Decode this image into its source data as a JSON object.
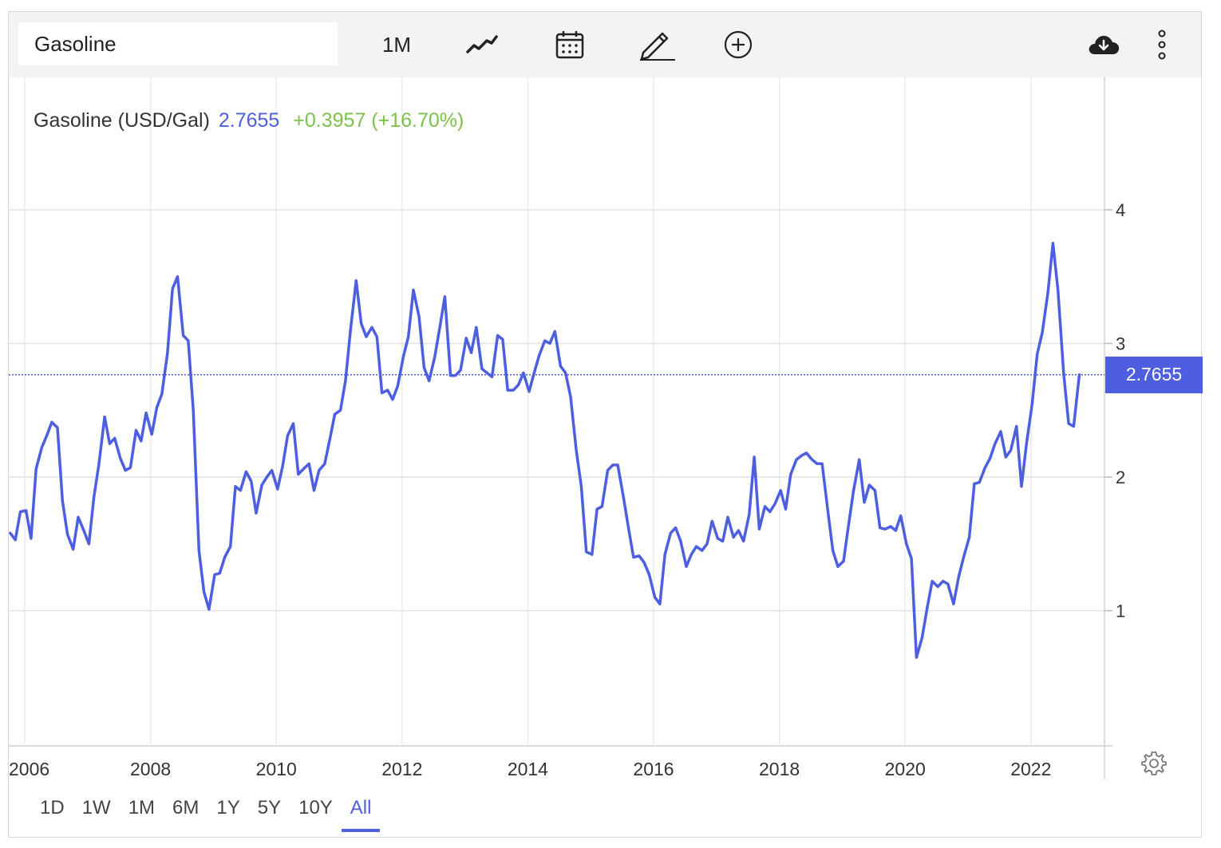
{
  "toolbar": {
    "search_value": "Gasoline",
    "interval_label": "1M",
    "icons": [
      "line-chart-icon",
      "calendar-icon",
      "pencil-icon",
      "add-circle-icon",
      "cloud-download-icon",
      "more-vertical-icon"
    ]
  },
  "legend": {
    "name": "Gasoline (USD/Gal)",
    "value": "2.7655",
    "change": "+0.3957 (+16.70%)",
    "value_color": "#4d5fe0",
    "change_color": "#7dc04b"
  },
  "price_badge": "2.7655",
  "range_tabs": [
    {
      "label": "1D",
      "active": false
    },
    {
      "label": "1W",
      "active": false
    },
    {
      "label": "1M",
      "active": false
    },
    {
      "label": "6M",
      "active": false
    },
    {
      "label": "1Y",
      "active": false
    },
    {
      "label": "5Y",
      "active": false
    },
    {
      "label": "10Y",
      "active": false
    },
    {
      "label": "All",
      "active": true
    }
  ],
  "chart_data": {
    "type": "line",
    "title": "",
    "xlabel": "",
    "ylabel": "",
    "x_ticks": [
      "2006",
      "2008",
      "2010",
      "2012",
      "2014",
      "2016",
      "2018",
      "2020",
      "2022"
    ],
    "y_ticks": [
      "1",
      "2",
      "3",
      "4"
    ],
    "xlim": [
      2005.77,
      2023.25
    ],
    "ylim": [
      0,
      5
    ],
    "grid": true,
    "current_value": 2.7655,
    "line_color": "#4d5fe0",
    "series": [
      {
        "points": [
          [
            2005.77,
            1.58
          ],
          [
            2005.85,
            1.53
          ],
          [
            2005.93,
            1.74
          ],
          [
            2006.02,
            1.75
          ],
          [
            2006.1,
            1.54
          ],
          [
            2006.18,
            2.06
          ],
          [
            2006.27,
            2.22
          ],
          [
            2006.35,
            2.31
          ],
          [
            2006.43,
            2.41
          ],
          [
            2006.52,
            2.37
          ],
          [
            2006.6,
            1.82
          ],
          [
            2006.68,
            1.57
          ],
          [
            2006.77,
            1.46
          ],
          [
            2006.85,
            1.7
          ],
          [
            2006.93,
            1.61
          ],
          [
            2007.02,
            1.5
          ],
          [
            2007.1,
            1.85
          ],
          [
            2007.18,
            2.1
          ],
          [
            2007.27,
            2.45
          ],
          [
            2007.35,
            2.25
          ],
          [
            2007.43,
            2.29
          ],
          [
            2007.52,
            2.14
          ],
          [
            2007.6,
            2.05
          ],
          [
            2007.68,
            2.07
          ],
          [
            2007.77,
            2.35
          ],
          [
            2007.85,
            2.27
          ],
          [
            2007.93,
            2.48
          ],
          [
            2008.02,
            2.32
          ],
          [
            2008.1,
            2.52
          ],
          [
            2008.18,
            2.62
          ],
          [
            2008.27,
            2.93
          ],
          [
            2008.35,
            3.41
          ],
          [
            2008.43,
            3.5
          ],
          [
            2008.52,
            3.06
          ],
          [
            2008.6,
            3.02
          ],
          [
            2008.68,
            2.5
          ],
          [
            2008.77,
            1.45
          ],
          [
            2008.85,
            1.14
          ],
          [
            2008.93,
            1.01
          ],
          [
            2009.02,
            1.27
          ],
          [
            2009.1,
            1.28
          ],
          [
            2009.18,
            1.4
          ],
          [
            2009.27,
            1.48
          ],
          [
            2009.35,
            1.93
          ],
          [
            2009.43,
            1.9
          ],
          [
            2009.52,
            2.04
          ],
          [
            2009.6,
            1.97
          ],
          [
            2009.68,
            1.73
          ],
          [
            2009.77,
            1.94
          ],
          [
            2009.85,
            2.0
          ],
          [
            2009.93,
            2.05
          ],
          [
            2010.02,
            1.91
          ],
          [
            2010.1,
            2.08
          ],
          [
            2010.18,
            2.31
          ],
          [
            2010.27,
            2.4
          ],
          [
            2010.35,
            2.02
          ],
          [
            2010.43,
            2.06
          ],
          [
            2010.52,
            2.1
          ],
          [
            2010.6,
            1.9
          ],
          [
            2010.68,
            2.05
          ],
          [
            2010.77,
            2.1
          ],
          [
            2010.85,
            2.28
          ],
          [
            2010.93,
            2.47
          ],
          [
            2011.02,
            2.5
          ],
          [
            2011.1,
            2.72
          ],
          [
            2011.18,
            3.1
          ],
          [
            2011.27,
            3.47
          ],
          [
            2011.35,
            3.15
          ],
          [
            2011.43,
            3.05
          ],
          [
            2011.52,
            3.12
          ],
          [
            2011.6,
            3.05
          ],
          [
            2011.68,
            2.63
          ],
          [
            2011.77,
            2.65
          ],
          [
            2011.85,
            2.58
          ],
          [
            2011.93,
            2.68
          ],
          [
            2012.02,
            2.9
          ],
          [
            2012.1,
            3.05
          ],
          [
            2012.18,
            3.4
          ],
          [
            2012.27,
            3.2
          ],
          [
            2012.35,
            2.82
          ],
          [
            2012.43,
            2.72
          ],
          [
            2012.52,
            2.9
          ],
          [
            2012.6,
            3.12
          ],
          [
            2012.68,
            3.35
          ],
          [
            2012.77,
            2.76
          ],
          [
            2012.85,
            2.76
          ],
          [
            2012.93,
            2.8
          ],
          [
            2013.02,
            3.04
          ],
          [
            2013.1,
            2.93
          ],
          [
            2013.18,
            3.12
          ],
          [
            2013.27,
            2.81
          ],
          [
            2013.35,
            2.78
          ],
          [
            2013.43,
            2.75
          ],
          [
            2013.52,
            3.06
          ],
          [
            2013.6,
            3.03
          ],
          [
            2013.68,
            2.65
          ],
          [
            2013.77,
            2.65
          ],
          [
            2013.85,
            2.69
          ],
          [
            2013.93,
            2.78
          ],
          [
            2014.02,
            2.64
          ],
          [
            2014.1,
            2.78
          ],
          [
            2014.18,
            2.91
          ],
          [
            2014.27,
            3.02
          ],
          [
            2014.35,
            3.0
          ],
          [
            2014.43,
            3.09
          ],
          [
            2014.52,
            2.83
          ],
          [
            2014.6,
            2.78
          ],
          [
            2014.68,
            2.6
          ],
          [
            2014.77,
            2.2
          ],
          [
            2014.85,
            1.93
          ],
          [
            2014.93,
            1.44
          ],
          [
            2015.02,
            1.42
          ],
          [
            2015.1,
            1.76
          ],
          [
            2015.18,
            1.78
          ],
          [
            2015.27,
            2.05
          ],
          [
            2015.35,
            2.09
          ],
          [
            2015.43,
            2.09
          ],
          [
            2015.52,
            1.85
          ],
          [
            2015.6,
            1.62
          ],
          [
            2015.68,
            1.4
          ],
          [
            2015.77,
            1.41
          ],
          [
            2015.85,
            1.36
          ],
          [
            2015.93,
            1.27
          ],
          [
            2016.02,
            1.1
          ],
          [
            2016.1,
            1.05
          ],
          [
            2016.18,
            1.42
          ],
          [
            2016.27,
            1.58
          ],
          [
            2016.35,
            1.62
          ],
          [
            2016.43,
            1.52
          ],
          [
            2016.52,
            1.33
          ],
          [
            2016.6,
            1.42
          ],
          [
            2016.68,
            1.48
          ],
          [
            2016.77,
            1.45
          ],
          [
            2016.85,
            1.5
          ],
          [
            2016.93,
            1.67
          ],
          [
            2017.02,
            1.54
          ],
          [
            2017.1,
            1.52
          ],
          [
            2017.18,
            1.7
          ],
          [
            2017.27,
            1.55
          ],
          [
            2017.35,
            1.6
          ],
          [
            2017.43,
            1.52
          ],
          [
            2017.52,
            1.72
          ],
          [
            2017.6,
            2.15
          ],
          [
            2017.68,
            1.61
          ],
          [
            2017.77,
            1.78
          ],
          [
            2017.85,
            1.74
          ],
          [
            2017.93,
            1.8
          ],
          [
            2018.02,
            1.9
          ],
          [
            2018.1,
            1.76
          ],
          [
            2018.18,
            2.02
          ],
          [
            2018.27,
            2.13
          ],
          [
            2018.35,
            2.16
          ],
          [
            2018.43,
            2.18
          ],
          [
            2018.52,
            2.13
          ],
          [
            2018.6,
            2.1
          ],
          [
            2018.68,
            2.1
          ],
          [
            2018.77,
            1.75
          ],
          [
            2018.85,
            1.45
          ],
          [
            2018.93,
            1.33
          ],
          [
            2019.02,
            1.37
          ],
          [
            2019.1,
            1.64
          ],
          [
            2019.18,
            1.9
          ],
          [
            2019.27,
            2.13
          ],
          [
            2019.35,
            1.81
          ],
          [
            2019.43,
            1.94
          ],
          [
            2019.52,
            1.9
          ],
          [
            2019.6,
            1.62
          ],
          [
            2019.68,
            1.61
          ],
          [
            2019.77,
            1.63
          ],
          [
            2019.85,
            1.6
          ],
          [
            2019.93,
            1.71
          ],
          [
            2020.02,
            1.5
          ],
          [
            2020.1,
            1.39
          ],
          [
            2020.18,
            0.65
          ],
          [
            2020.27,
            0.8
          ],
          [
            2020.35,
            1.02
          ],
          [
            2020.43,
            1.22
          ],
          [
            2020.52,
            1.18
          ],
          [
            2020.6,
            1.22
          ],
          [
            2020.68,
            1.2
          ],
          [
            2020.77,
            1.05
          ],
          [
            2020.85,
            1.25
          ],
          [
            2020.93,
            1.4
          ],
          [
            2021.02,
            1.55
          ],
          [
            2021.1,
            1.95
          ],
          [
            2021.18,
            1.96
          ],
          [
            2021.27,
            2.07
          ],
          [
            2021.35,
            2.14
          ],
          [
            2021.43,
            2.25
          ],
          [
            2021.52,
            2.34
          ],
          [
            2021.6,
            2.15
          ],
          [
            2021.68,
            2.2
          ],
          [
            2021.77,
            2.38
          ],
          [
            2021.85,
            1.93
          ],
          [
            2021.93,
            2.25
          ],
          [
            2022.02,
            2.55
          ],
          [
            2022.1,
            2.92
          ],
          [
            2022.18,
            3.08
          ],
          [
            2022.27,
            3.38
          ],
          [
            2022.35,
            3.75
          ],
          [
            2022.43,
            3.4
          ],
          [
            2022.52,
            2.78
          ],
          [
            2022.6,
            2.4
          ],
          [
            2022.68,
            2.38
          ],
          [
            2022.77,
            2.7655
          ]
        ]
      }
    ]
  }
}
